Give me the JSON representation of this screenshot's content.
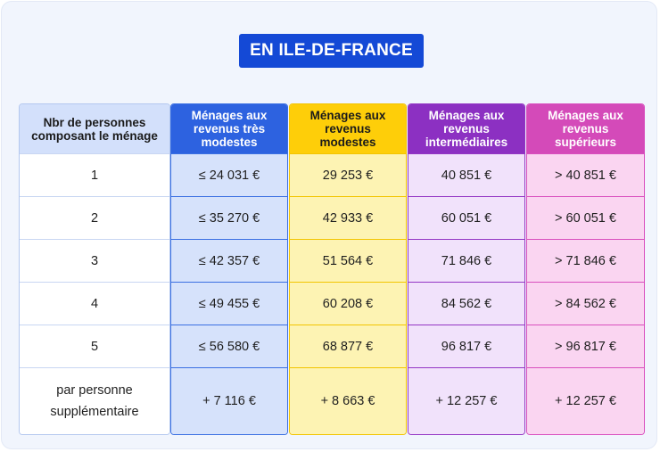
{
  "title": "EN ILE-DE-FRANCE",
  "colors": {
    "title_bg": "#1449d6",
    "tres_modestes": "#2d62e0",
    "modestes": "#fece09",
    "intermediaires": "#8c30c2",
    "superieurs": "#d44ab9"
  },
  "table": {
    "columns": [
      "Nbr de personnes composant le ménage",
      "Ménages aux revenus très modestes",
      "Ménages aux revenus modestes",
      "Ménages aux revenus intermédiaires",
      "Ménages aux revenus supérieurs"
    ],
    "rows": [
      [
        "1",
        "≤ 24 031 €",
        "29 253 €",
        "40 851 €",
        "> 40 851 €"
      ],
      [
        "2",
        "≤ 35 270 €",
        "42 933 €",
        "60 051 €",
        "> 60 051 €"
      ],
      [
        "3",
        "≤ 42 357 €",
        "51 564 €",
        "71 846 €",
        "> 71 846 €"
      ],
      [
        "4",
        "≤ 49 455 €",
        "60 208 €",
        "84 562 €",
        "> 84 562 €"
      ],
      [
        "5",
        "≤ 56 580 €",
        "68 877 €",
        "96 817 €",
        "> 96 817 €"
      ],
      [
        "par personne supplémentaire",
        "+ 7 116 €",
        "+ 8 663 €",
        "+ 12 257 €",
        "+ 12 257 €"
      ]
    ]
  }
}
